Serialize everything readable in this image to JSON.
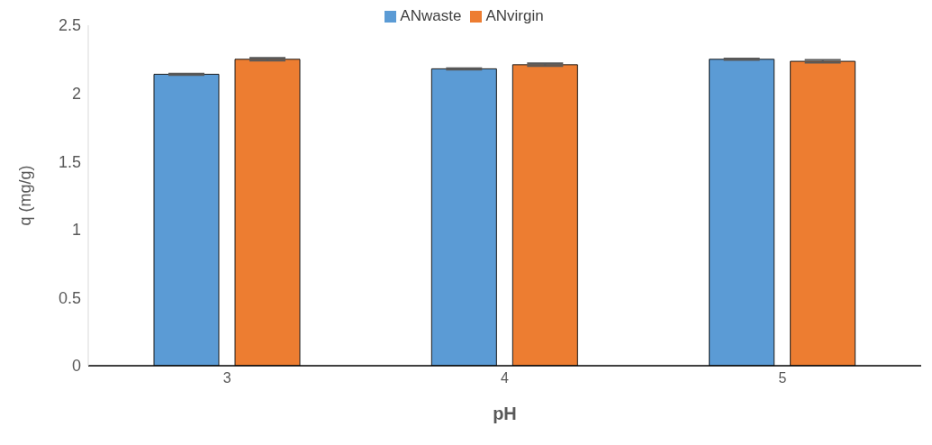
{
  "chart_data": {
    "type": "bar",
    "xlabel": "pH",
    "ylabel": "q (mg/g)",
    "categories": [
      "3",
      "4",
      "5"
    ],
    "series": [
      {
        "name": "ANwaste",
        "color": "#5b9bd5",
        "values": [
          2.14,
          2.18,
          2.25
        ],
        "errors": [
          0.005,
          0.005,
          0.005
        ]
      },
      {
        "name": "ANvirgin",
        "color": "#ed7d31",
        "values": [
          2.25,
          2.21,
          2.235
        ],
        "errors": [
          0.01,
          0.01,
          0.01
        ]
      }
    ],
    "ylim": [
      0,
      2.5
    ],
    "yticks": [
      0,
      0.5,
      1,
      1.5,
      2,
      2.5
    ],
    "legend": "top"
  }
}
